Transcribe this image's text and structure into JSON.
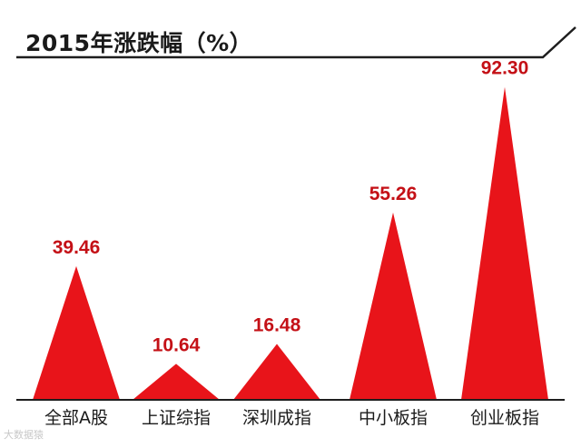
{
  "chart_data": {
    "type": "bar",
    "title": "2015年涨跌幅（%）",
    "categories": [
      "全部A股",
      "上证综指",
      "深圳成指",
      "中小板指",
      "创业板指"
    ],
    "values": [
      39.46,
      10.64,
      16.48,
      55.26,
      92.3
    ],
    "value_labels": [
      "39.46",
      "10.64",
      "16.48",
      "55.26",
      "92.30"
    ],
    "ylim": [
      0,
      100
    ],
    "mark_shape": "triangle",
    "grid": false,
    "legend": "none"
  },
  "watermark": "大数据猿",
  "colors": {
    "bar": "#e8141a",
    "value_label": "#c41016",
    "axis": "#1e1e1e",
    "title": "#1a1a1a",
    "category_text": "#1a1a1a"
  }
}
